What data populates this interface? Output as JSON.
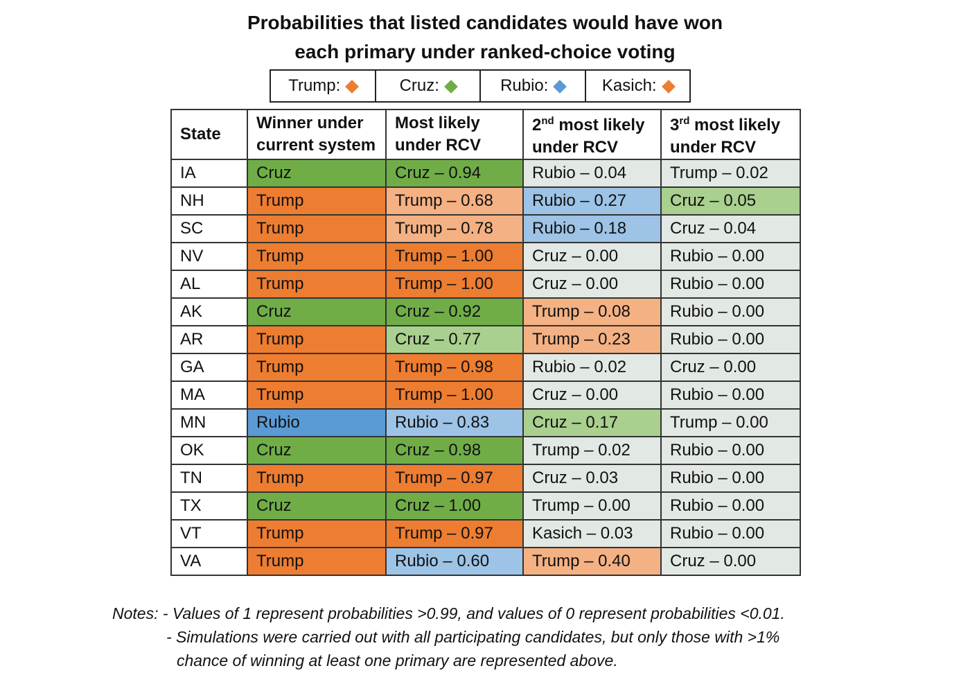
{
  "title": {
    "line1": "Probabilities that listed candidates would have won",
    "line2": "each primary under ranked-choice voting"
  },
  "legend": [
    {
      "label": "Trump:",
      "color": "#ed7d31"
    },
    {
      "label": "Cruz:",
      "color": "#70ad47"
    },
    {
      "label": "Rubio:",
      "color": "#5b9bd5"
    },
    {
      "label": "Kasich:",
      "color": "#ed7d31"
    }
  ],
  "colors": {
    "Trump": {
      "strong": "#ed7d31",
      "light": "#f4b183"
    },
    "Cruz": {
      "strong": "#70ad47",
      "light": "#a9d08e"
    },
    "Rubio": {
      "strong": "#5b9bd5",
      "light": "#9dc3e6"
    },
    "Kasich": {
      "strong": "#ed7d31",
      "light": "#f8cbad"
    },
    "neutral": "#e2e8e4"
  },
  "chart_data": {
    "type": "table",
    "columns": [
      {
        "base": "State",
        "sup": "",
        "rest": ""
      },
      {
        "base": "Winner under current system",
        "sup": "",
        "rest": ""
      },
      {
        "base": "Most likely under RCV",
        "sup": "",
        "rest": ""
      },
      {
        "base": "2",
        "sup": "nd",
        "rest": " most likely under RCV"
      },
      {
        "base": "3",
        "sup": "rd",
        "rest": " most likely under RCV"
      }
    ],
    "rows": [
      {
        "state": "IA",
        "winner": "Cruz",
        "first": "Cruz – 0.94",
        "second": "Rubio – 0.04",
        "third": "Trump – 0.02"
      },
      {
        "state": "NH",
        "winner": "Trump",
        "first": "Trump – 0.68",
        "second": "Rubio – 0.27",
        "third": "Cruz – 0.05"
      },
      {
        "state": "SC",
        "winner": "Trump",
        "first": "Trump – 0.78",
        "second": "Rubio – 0.18",
        "third": "Cruz – 0.04"
      },
      {
        "state": "NV",
        "winner": "Trump",
        "first": "Trump – 1.00",
        "second": "Cruz – 0.00",
        "third": "Rubio – 0.00"
      },
      {
        "state": "AL",
        "winner": "Trump",
        "first": "Trump – 1.00",
        "second": "Cruz – 0.00",
        "third": "Rubio – 0.00"
      },
      {
        "state": "AK",
        "winner": "Cruz",
        "first": "Cruz – 0.92",
        "second": "Trump – 0.08",
        "third": "Rubio – 0.00"
      },
      {
        "state": "AR",
        "winner": "Trump",
        "first": "Cruz – 0.77",
        "second": "Trump – 0.23",
        "third": "Rubio – 0.00"
      },
      {
        "state": "GA",
        "winner": "Trump",
        "first": "Trump – 0.98",
        "second": "Rubio – 0.02",
        "third": "Cruz – 0.00"
      },
      {
        "state": "MA",
        "winner": "Trump",
        "first": "Trump – 1.00",
        "second": "Cruz – 0.00",
        "third": "Rubio – 0.00"
      },
      {
        "state": "MN",
        "winner": "Rubio",
        "first": "Rubio – 0.83",
        "second": "Cruz – 0.17",
        "third": "Trump – 0.00"
      },
      {
        "state": "OK",
        "winner": "Cruz",
        "first": "Cruz – 0.98",
        "second": "Trump – 0.02",
        "third": "Rubio – 0.00"
      },
      {
        "state": "TN",
        "winner": "Trump",
        "first": "Trump – 0.97",
        "second": "Cruz – 0.03",
        "third": "Rubio – 0.00"
      },
      {
        "state": "TX",
        "winner": "Cruz",
        "first": "Cruz – 1.00",
        "second": "Trump – 0.00",
        "third": "Rubio – 0.00"
      },
      {
        "state": "VT",
        "winner": "Trump",
        "first": "Trump – 0.97",
        "second": "Kasich – 0.03",
        "third": "Rubio – 0.00"
      },
      {
        "state": "VA",
        "winner": "Trump",
        "first": "Rubio – 0.60",
        "second": "Trump – 0.40",
        "third": "Cruz – 0.00"
      }
    ]
  },
  "notes": {
    "line1": "Notes: - Values of 1 represent probabilities >0.99, and values of 0 represent probabilities <0.01.",
    "line2": "- Simulations were carried out with all participating candidates, but only those with >1%",
    "line3": "chance of winning at least one primary are represented above."
  }
}
